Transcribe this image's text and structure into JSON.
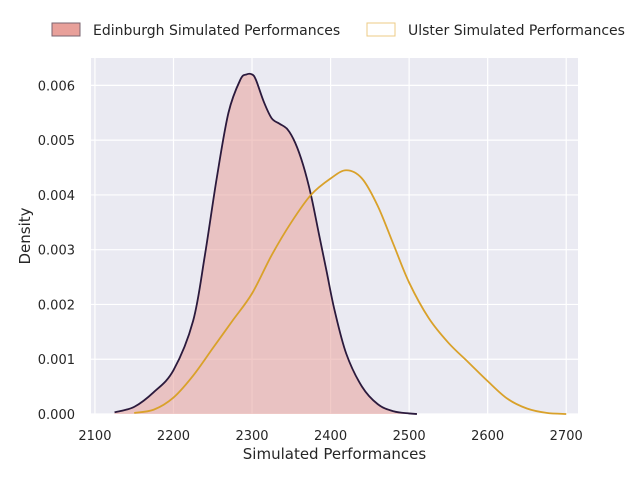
{
  "chart_data": {
    "type": "area",
    "title": "",
    "xlabel": "Simulated Performances",
    "ylabel": "Density",
    "xlim": [
      2095,
      2715
    ],
    "ylim": [
      0,
      0.0065
    ],
    "xticks": [
      2100,
      2200,
      2300,
      2400,
      2500,
      2600,
      2700
    ],
    "yticks": [
      0.0,
      0.001,
      0.002,
      0.003,
      0.004,
      0.005,
      0.006
    ],
    "ytick_labels": [
      "0.000",
      "0.001",
      "0.002",
      "0.003",
      "0.004",
      "0.005",
      "0.006"
    ],
    "grid": true,
    "legend_position": "top, outside plot",
    "series": [
      {
        "name": "Edinburgh Simulated Performances",
        "fill": "#e8a09a",
        "line": "#2b1a3d",
        "filled": true,
        "x": [
          2125,
          2150,
          2175,
          2200,
          2225,
          2240,
          2255,
          2270,
          2285,
          2293,
          2300,
          2305,
          2315,
          2325,
          2335,
          2345,
          2355,
          2365,
          2375,
          2385,
          2395,
          2405,
          2420,
          2440,
          2460,
          2480,
          2500,
          2510
        ],
        "y": [
          3e-05,
          0.00013,
          0.0004,
          0.0008,
          0.0017,
          0.0029,
          0.0043,
          0.0055,
          0.0061,
          0.0062,
          0.0062,
          0.0061,
          0.0057,
          0.0054,
          0.0053,
          0.0052,
          0.00495,
          0.00455,
          0.004,
          0.0033,
          0.0026,
          0.0019,
          0.0011,
          0.0005,
          0.00018,
          5e-05,
          1e-05,
          0.0
        ]
      },
      {
        "name": "Ulster Simulated Performances",
        "fill": "none",
        "line": "#d9a12a",
        "filled": false,
        "x": [
          2150,
          2175,
          2200,
          2225,
          2250,
          2275,
          2300,
          2325,
          2350,
          2375,
          2400,
          2420,
          2440,
          2460,
          2480,
          2500,
          2525,
          2550,
          2575,
          2600,
          2625,
          2650,
          2675,
          2700
        ],
        "y": [
          2e-05,
          8e-05,
          0.0003,
          0.0007,
          0.0012,
          0.0017,
          0.0022,
          0.0029,
          0.0035,
          0.004,
          0.0043,
          0.00445,
          0.0043,
          0.0038,
          0.0031,
          0.0024,
          0.00175,
          0.0013,
          0.00095,
          0.0006,
          0.00028,
          0.0001,
          2e-05,
          0.0
        ]
      }
    ]
  }
}
